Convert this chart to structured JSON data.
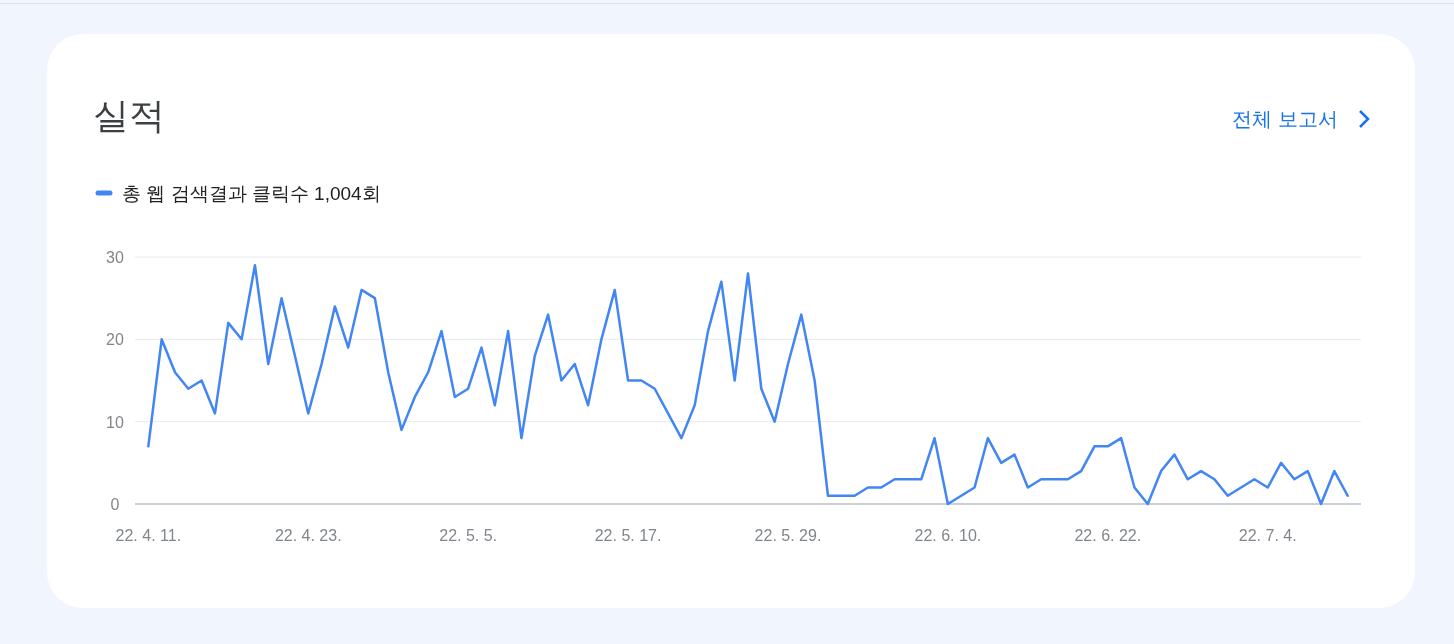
{
  "chart_data": {
    "type": "line",
    "title": "실적",
    "annotations": [
      "전체 보고서"
    ],
    "x": [
      "--04-11",
      "--04-12",
      "--04-13",
      "--04-14",
      "--04-15",
      "--04-16",
      "--04-17",
      "--04-18",
      "--04-19",
      "--04-20",
      "--04-21",
      "--04-22",
      "--04-23",
      "--04-24",
      "--04-25",
      "--04-26",
      "--04-27",
      "--04-28",
      "--04-29",
      "--04-30",
      "--05-01",
      "--05-02",
      "--05-03",
      "--05-04",
      "--05-05",
      "--05-06",
      "--05-07",
      "--05-08",
      "--05-09",
      "--05-10",
      "--05-11",
      "--05-12",
      "--05-13",
      "--05-14",
      "--05-15",
      "--05-16",
      "--05-17",
      "--05-18",
      "--05-19",
      "--05-20",
      "--05-21",
      "--05-22",
      "--05-23",
      "--05-24",
      "--05-25",
      "--05-26",
      "--05-27",
      "--05-28",
      "--05-29",
      "--05-30",
      "--05-31",
      "--06-01",
      "--06-02",
      "--06-03",
      "--06-04",
      "--06-05",
      "--06-06",
      "--06-07",
      "--06-08",
      "--06-09",
      "--06-10",
      "--06-11",
      "--06-12",
      "--06-13",
      "--06-14",
      "--06-15",
      "--06-16",
      "--06-17",
      "--06-18",
      "--06-19",
      "--06-20",
      "--06-21",
      "--06-22",
      "--06-23",
      "--06-24",
      "--06-25",
      "--06-26",
      "--06-27",
      "--06-28",
      "--06-29",
      "--06-30",
      "--07-01",
      "--07-02",
      "--07-03",
      "--07-04",
      "--07-05",
      "--07-06",
      "--07-07",
      "--07-08",
      "--07-09",
      "--07-10"
    ],
    "series": [
      {
        "name": "총 웹 검색결과 클릭수 1,004회",
        "color": "#4285f4",
        "values": [
          7,
          20,
          16,
          14,
          15,
          11,
          22,
          20,
          29,
          17,
          25,
          18,
          11,
          17,
          24,
          19,
          26,
          25,
          16,
          9,
          13,
          16,
          21,
          13,
          14,
          19,
          12,
          21,
          8,
          18,
          23,
          15,
          17,
          12,
          20,
          26,
          15,
          15,
          14,
          11,
          8,
          12,
          21,
          27,
          15,
          28,
          14,
          10,
          17,
          23,
          15,
          1,
          1,
          1,
          2,
          2,
          3,
          3,
          3,
          8,
          0,
          1,
          2,
          8,
          5,
          6,
          2,
          3,
          3,
          3,
          4,
          7,
          7,
          8,
          2,
          0,
          4,
          6,
          3,
          4,
          3,
          1,
          2,
          3,
          2,
          5,
          3,
          4,
          0,
          4,
          1
        ]
      }
    ],
    "xlim": [
      "--04-10",
      "--07-11"
    ],
    "xticks": [
      {
        "value": "--04-11",
        "label": "22. 4. 11."
      },
      {
        "value": "--04-23",
        "label": "22. 4. 23."
      },
      {
        "value": "--05-05",
        "label": "22. 5. 5."
      },
      {
        "value": "--05-17",
        "label": "22. 5. 17."
      },
      {
        "value": "--05-29",
        "label": "22. 5. 29."
      },
      {
        "value": "--06-10",
        "label": "22. 6. 10."
      },
      {
        "value": "--06-22",
        "label": "22. 6. 22."
      },
      {
        "value": "--07-04",
        "label": "22. 7. 4."
      }
    ],
    "ylim": [
      0,
      30
    ],
    "yticks": [
      0,
      10,
      20,
      30
    ],
    "grid": "y",
    "legend": "top left",
    "marker": "none",
    "line_style": "solid"
  }
}
